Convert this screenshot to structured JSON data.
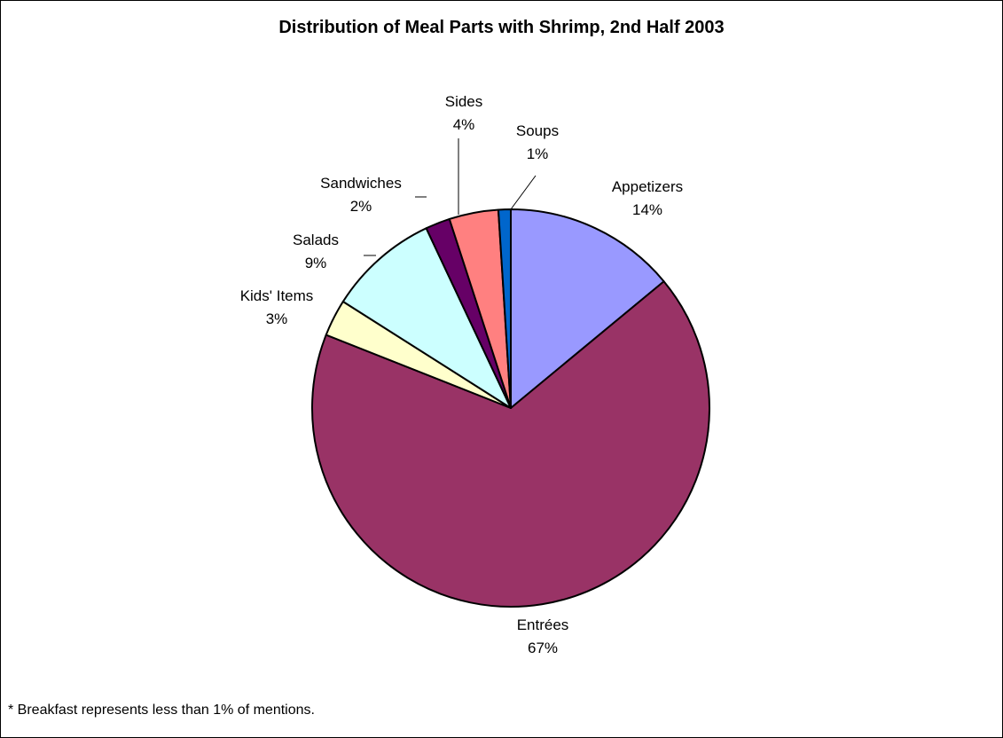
{
  "chart_data": {
    "type": "pie",
    "title": "Distribution of Meal Parts with Shrimp, 2nd Half 2003",
    "slices": [
      {
        "name": "Appetizers",
        "value": 14,
        "label": "14%",
        "color": "#9999FF"
      },
      {
        "name": "Entrées",
        "value": 67,
        "label": "67%",
        "color": "#993366"
      },
      {
        "name": "Kids' Items",
        "value": 3,
        "label": "3%",
        "color": "#FFFFCC"
      },
      {
        "name": "Salads",
        "value": 9,
        "label": "9%",
        "color": "#CCFFFF"
      },
      {
        "name": "Sandwiches",
        "value": 2,
        "label": "2%",
        "color": "#660066"
      },
      {
        "name": "Sides",
        "value": 4,
        "label": "4%",
        "color": "#FF8080"
      },
      {
        "name": "Soups",
        "value": 1,
        "label": "1%",
        "color": "#0066CC"
      }
    ],
    "footnote": "* Breakfast represents less than 1% of mentions."
  }
}
